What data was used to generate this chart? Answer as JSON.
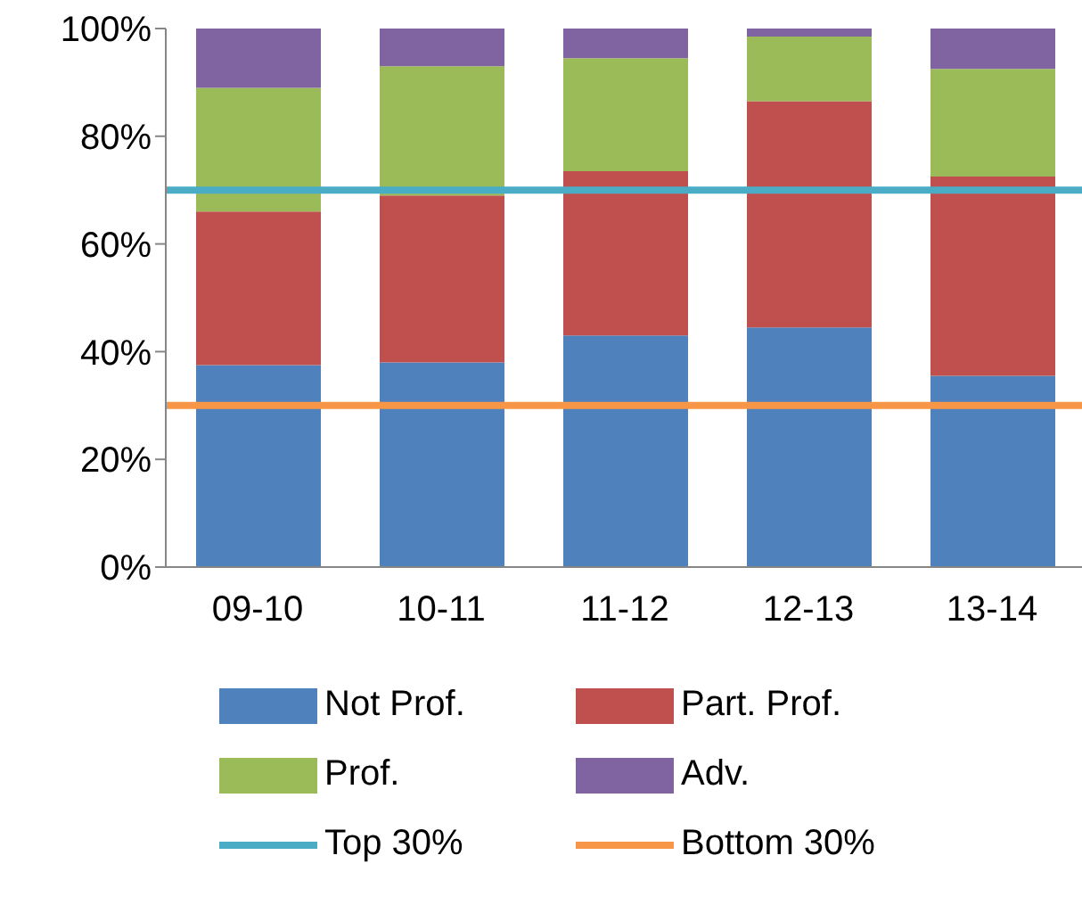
{
  "chart_data": {
    "type": "bar",
    "stacked": true,
    "categories": [
      "09-10",
      "10-11",
      "11-12",
      "12-13",
      "13-14"
    ],
    "series": [
      {
        "name": "Not Prof.",
        "color": "#4f81bd",
        "values": [
          37.5,
          38,
          43,
          44.5,
          35.5
        ]
      },
      {
        "name": "Part. Prof.",
        "color": "#c0504d",
        "values": [
          28.5,
          31,
          30.5,
          42,
          37
        ]
      },
      {
        "name": "Prof.",
        "color": "#9bbb59",
        "values": [
          23,
          24,
          21,
          12,
          20
        ]
      },
      {
        "name": "Adv.",
        "color": "#8064a2",
        "values": [
          11,
          7,
          5.5,
          1.5,
          7.5
        ]
      }
    ],
    "ylim": [
      0,
      100
    ],
    "yticks": [
      {
        "value": 0,
        "label": "0%"
      },
      {
        "value": 20,
        "label": "20%"
      },
      {
        "value": 40,
        "label": "40%"
      },
      {
        "value": 60,
        "label": "60%"
      },
      {
        "value": 80,
        "label": "80%"
      },
      {
        "value": 100,
        "label": "100%"
      }
    ],
    "ref_lines": [
      {
        "axis": "y",
        "value": 70,
        "label": "Top 30%",
        "color": "#4bacc6"
      },
      {
        "axis": "y",
        "value": 30,
        "label": "Bottom 30%",
        "color": "#f79646"
      }
    ],
    "grid": false,
    "legend": "bottom"
  }
}
